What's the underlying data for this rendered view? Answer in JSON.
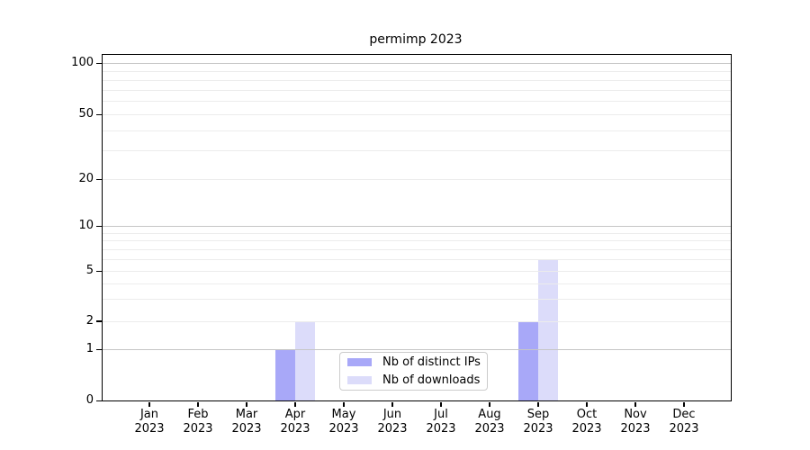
{
  "title": "permimp 2023",
  "chart_data": {
    "type": "bar",
    "title": "permimp 2023",
    "categories": [
      "Jan",
      "Feb",
      "Mar",
      "Apr",
      "May",
      "Jun",
      "Jul",
      "Aug",
      "Sep",
      "Oct",
      "Nov",
      "Dec"
    ],
    "category_year": "2023",
    "series": [
      {
        "name": "Nb of distinct IPs",
        "color": "#a8a8f8",
        "values": [
          0,
          0,
          0,
          1,
          0,
          0,
          0,
          0,
          2,
          0,
          0,
          0
        ]
      },
      {
        "name": "Nb of downloads",
        "color": "#dcdcfa",
        "values": [
          0,
          0,
          0,
          2,
          0,
          0,
          0,
          0,
          6,
          0,
          0,
          0
        ]
      }
    ],
    "yscale": "symlog",
    "ylim": [
      0,
      112
    ],
    "y_ticks": [
      0,
      1,
      2,
      5,
      10,
      20,
      50,
      100
    ],
    "gridlines_major": [
      1,
      10,
      100
    ],
    "gridlines_minor": [
      2,
      3,
      4,
      5,
      6,
      7,
      8,
      9,
      20,
      30,
      40,
      50,
      60,
      70,
      80,
      90
    ],
    "grid": true,
    "legend_position": "lower center",
    "xlabel": "",
    "ylabel": ""
  },
  "colors": {
    "grid_major": "#c6c6c6",
    "grid_minor": "#ececec",
    "axis": "#000000",
    "background": "#ffffff"
  }
}
